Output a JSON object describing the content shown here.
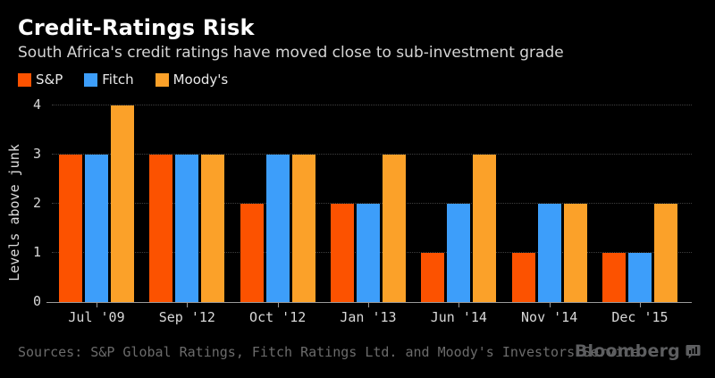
{
  "header": {
    "title": "Credit-Ratings Risk",
    "subtitle": "South Africa's credit ratings have moved close to sub-investment grade"
  },
  "chart_data": {
    "type": "bar",
    "categories": [
      "Jul '09",
      "Sep '12",
      "Oct '12",
      "Jan '13",
      "Jun '14",
      "Nov '14",
      "Dec '15"
    ],
    "series": [
      {
        "name": "S&P",
        "color": "#fc5200",
        "values": [
          3,
          3,
          2,
          2,
          1,
          1,
          1
        ]
      },
      {
        "name": "Fitch",
        "color": "#3d9efa",
        "values": [
          3,
          3,
          3,
          2,
          2,
          2,
          1
        ]
      },
      {
        "name": "Moody's",
        "color": "#fba129",
        "values": [
          4,
          3,
          3,
          3,
          3,
          2,
          2
        ]
      }
    ],
    "title": "Credit-Ratings Risk",
    "xlabel": "",
    "ylabel": "Levels above junk",
    "ylim": [
      0,
      4
    ],
    "yticks": [
      0,
      1,
      2,
      3,
      4
    ],
    "grid": "horizontal dotted",
    "legend_position": "top-left",
    "background": "#000000"
  },
  "footer": {
    "sources": "Sources: S&P Global Ratings, Fitch Ratings Ltd. and Moody's Investors Service",
    "brand": "Bloomberg"
  }
}
